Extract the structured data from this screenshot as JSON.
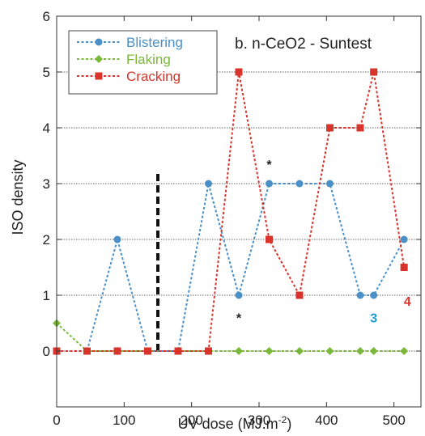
{
  "chart_data": {
    "type": "line",
    "title": "b. n-CeO2 - Suntest",
    "xlabel": "UV dose (MJ.m",
    "xlabel_sup": "-2",
    "xlabel_close": ")",
    "ylabel": "ISO density",
    "xlim": [
      0,
      540
    ],
    "ylim": [
      -1,
      6
    ],
    "xticks": [
      0,
      100,
      200,
      300,
      400,
      500
    ],
    "yticks": [
      0,
      1,
      2,
      3,
      4,
      5,
      6
    ],
    "grid": "horizontal-dotted",
    "legend_position": "top-left",
    "series": [
      {
        "name": "Blistering",
        "color": "#4a90c8",
        "marker": "circle",
        "x": [
          0,
          45,
          90,
          135,
          180,
          225,
          270,
          315,
          360,
          405,
          450,
          470,
          515
        ],
        "y": [
          0,
          0,
          2,
          0,
          0,
          3,
          1,
          3,
          3,
          3,
          1,
          1,
          2
        ]
      },
      {
        "name": "Flaking",
        "color": "#7ab83a",
        "marker": "diamond",
        "x": [
          0,
          45,
          90,
          135,
          180,
          225,
          270,
          315,
          360,
          405,
          450,
          470,
          515
        ],
        "y": [
          0.5,
          0,
          0,
          0,
          0,
          0,
          0,
          0,
          0,
          0,
          0,
          0,
          0
        ]
      },
      {
        "name": "Cracking",
        "color": "#d9342b",
        "marker": "square",
        "x": [
          0,
          45,
          90,
          135,
          180,
          225,
          270,
          315,
          360,
          405,
          450,
          470,
          515
        ],
        "y": [
          0,
          0,
          0,
          0,
          0,
          0,
          5,
          2,
          1,
          4,
          4,
          5,
          1.5
        ]
      }
    ],
    "vertical_marker": {
      "x": 150,
      "y_from": 0,
      "y_to": 3.2,
      "color": "#111111"
    },
    "annotations": [
      {
        "text": "*",
        "x": 315,
        "y": 3.35,
        "color": "#222222"
      },
      {
        "text": "*",
        "x": 270,
        "y": 0.6,
        "color": "#222222"
      },
      {
        "text": "3",
        "x": 470,
        "y": 0.6,
        "color": "#1a9ad6"
      },
      {
        "text": "4",
        "x": 520,
        "y": 0.9,
        "color": "#d9342b"
      }
    ]
  }
}
